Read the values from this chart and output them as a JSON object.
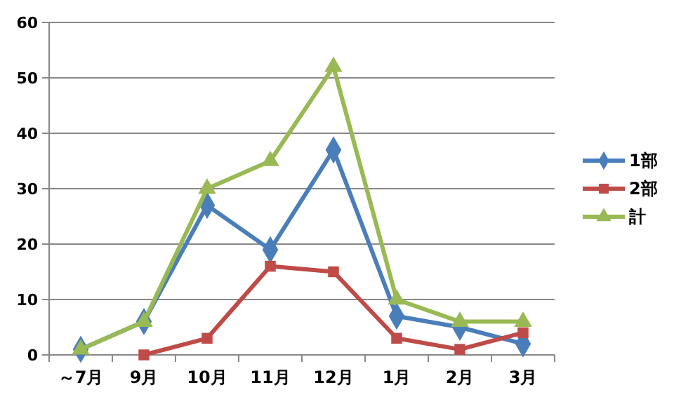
{
  "chart_data": {
    "type": "line",
    "categories": [
      "～7月",
      "9月",
      "10月",
      "11月",
      "12月",
      "1月",
      "2月",
      "3月"
    ],
    "series": [
      {
        "name": "1部",
        "color": "#4a7ebb",
        "marker": "diamond",
        "values": [
          1,
          6,
          27,
          19,
          37,
          7,
          5,
          2
        ]
      },
      {
        "name": "2部",
        "color": "#be4b48",
        "marker": "square",
        "values": [
          null,
          0,
          3,
          16,
          15,
          3,
          1,
          4
        ]
      },
      {
        "name": "計",
        "color": "#98b954",
        "marker": "triangle",
        "values": [
          1,
          6,
          30,
          35,
          52,
          10,
          6,
          6
        ]
      }
    ],
    "ylim": [
      0,
      60
    ],
    "yticks": [
      0,
      10,
      20,
      30,
      40,
      50,
      60
    ],
    "grid": "y",
    "legend": "right"
  }
}
